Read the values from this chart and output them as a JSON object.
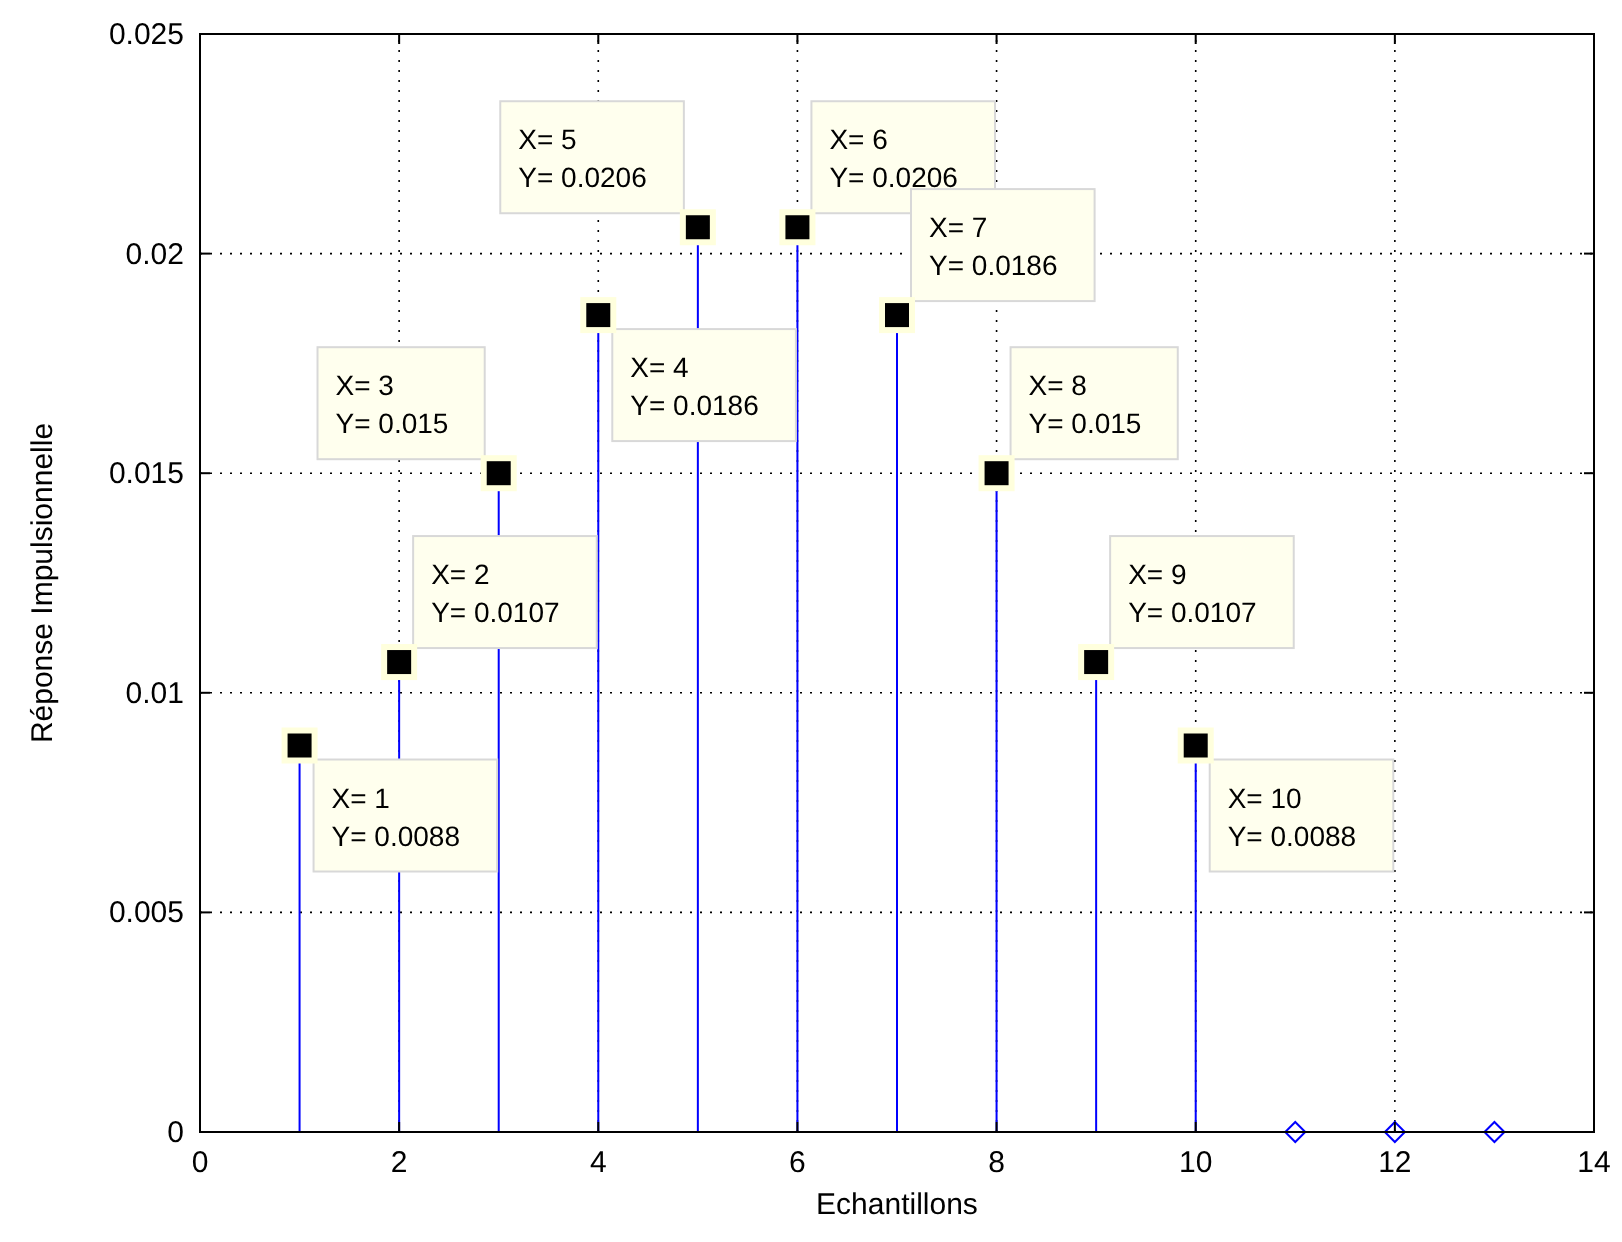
{
  "chart_data": {
    "type": "lollipop",
    "xlabel": "Echantillons",
    "ylabel": "Réponse Impulsionnelle",
    "x": [
      1,
      2,
      3,
      4,
      5,
      6,
      7,
      8,
      9,
      10,
      11,
      12,
      13
    ],
    "series": [
      {
        "color": "#0000ff",
        "values": [
          0.0088,
          0.0107,
          0.015,
          0.0186,
          0.0206,
          0.0206,
          0.0186,
          0.015,
          0.0107,
          0.0088,
          0,
          0,
          0
        ]
      }
    ],
    "xlim": [
      0,
      14
    ],
    "xticks": [
      0,
      2,
      4,
      6,
      8,
      10,
      12,
      14
    ],
    "ylim": [
      0,
      0.025
    ],
    "yticks": [
      0,
      0.005,
      0.01,
      0.015,
      0.02,
      0.025
    ],
    "grid": true,
    "marker": "diamond",
    "line_style": "solid",
    "annotations": [
      {
        "text": "X= 1\nY= 0.0088",
        "x": 1,
        "y": 0.0088
      },
      {
        "text": "X= 2\nY= 0.0107",
        "x": 2,
        "y": 0.0107
      },
      {
        "text": "X= 3\nY= 0.015",
        "x": 3,
        "y": 0.015
      },
      {
        "text": "X= 4\nY= 0.0186",
        "x": 4,
        "y": 0.0186
      },
      {
        "text": "X= 5\nY= 0.0206",
        "x": 5,
        "y": 0.0206
      },
      {
        "text": "X= 6\nY= 0.0206",
        "x": 6,
        "y": 0.0206
      },
      {
        "text": "X= 7\nY= 0.0186",
        "x": 7,
        "y": 0.0186
      },
      {
        "text": "X= 8\nY= 0.015",
        "x": 8,
        "y": 0.015
      },
      {
        "text": "X= 9\nY= 0.0107",
        "x": 9,
        "y": 0.0107
      },
      {
        "text": "X= 10\nY= 0.0088",
        "x": 10,
        "y": 0.0088
      }
    ]
  }
}
